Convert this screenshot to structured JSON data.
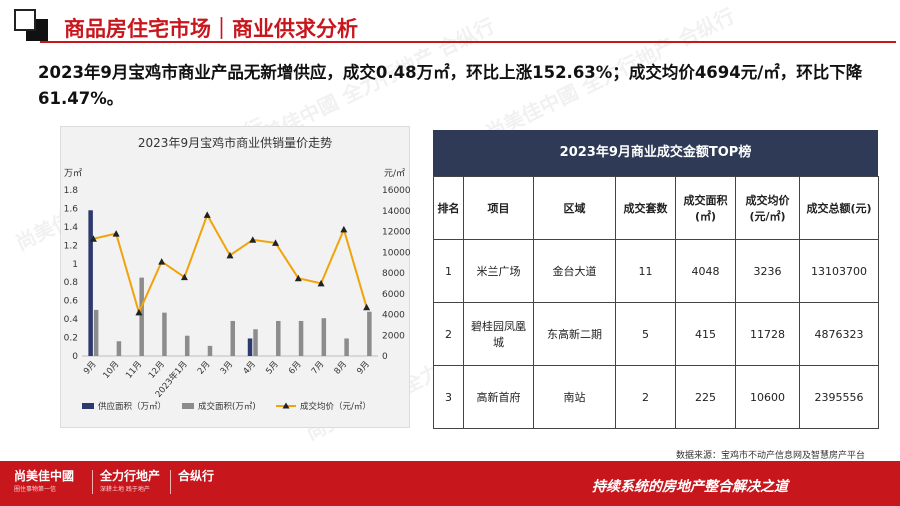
{
  "header": {
    "title": "商品房住宅市场｜商业供求分析"
  },
  "headline": "2023年9月宝鸡市商业产品无新增供应，成交0.48万㎡，环比上涨152.63%；成交均价4694元/㎡，环比下降61.47%。",
  "chart_data": {
    "type": "bar",
    "title": "2023年9月宝鸡市商业供销量价走势",
    "categories": [
      "9月",
      "10月",
      "11月",
      "12月",
      "2023年1月",
      "2月",
      "3月",
      "4月",
      "5月",
      "6月",
      "7月",
      "8月",
      "9月"
    ],
    "y_left_unit": "万㎡",
    "y_right_unit": "元/㎡",
    "y_left_range": [
      0,
      1.8
    ],
    "y_left_ticks": [
      "0",
      "0.2",
      "0.4",
      "0.6",
      "0.8",
      "1",
      "1.2",
      "1.4",
      "1.6",
      "1.8"
    ],
    "y_right_range": [
      0,
      16000
    ],
    "y_right_ticks": [
      "0",
      "2000",
      "4000",
      "6000",
      "8000",
      "10000",
      "12000",
      "14000",
      "16000"
    ],
    "series": [
      {
        "name": "供应面积（万㎡）",
        "kind": "bar",
        "axis": "left",
        "color": "#2e3a6e",
        "values": [
          1.58,
          0,
          0,
          0,
          0,
          0,
          0,
          0.19,
          0,
          0,
          0,
          0,
          0
        ]
      },
      {
        "name": "成交面积(万㎡)",
        "kind": "bar",
        "axis": "left",
        "color": "#8c8c8c",
        "values": [
          0.5,
          0.16,
          0.85,
          0.47,
          0.22,
          0.11,
          0.38,
          0.29,
          0.38,
          0.38,
          0.41,
          0.19,
          0.48
        ]
      },
      {
        "name": "成交均价（元/㎡）",
        "kind": "line",
        "axis": "right",
        "color": "#f0a30a",
        "values": [
          11300,
          11800,
          4200,
          9100,
          7600,
          13600,
          9700,
          11200,
          10900,
          7500,
          7000,
          12200,
          4694
        ]
      }
    ],
    "legend_position": "bottom",
    "grid": false
  },
  "table": {
    "title": "2023年9月商业成交金额TOP榜",
    "headers": [
      "排名",
      "项目",
      "区域",
      "成交套数",
      "成交面积(㎡)",
      "成交均价(元/㎡)",
      "成交总额(元)"
    ],
    "rows": [
      [
        "1",
        "米兰广场",
        "金台大道",
        "11",
        "4048",
        "3236",
        "13103700"
      ],
      [
        "2",
        "碧桂园凤凰城",
        "东高新二期",
        "5",
        "415",
        "11728",
        "4876323"
      ],
      [
        "3",
        "高新首府",
        "南站",
        "2",
        "225",
        "10600",
        "2395556"
      ]
    ]
  },
  "source": "数据来源：宝鸡市不动产信息网及智慧房产平台",
  "footer": {
    "brand1": "尚美佳中國",
    "brand1_sub": "圈住事物第一信",
    "brand2": "全力行地产",
    "brand2_sub": "深耕土地 践于地产",
    "brand3": "合纵行",
    "slogan": "持续系统的房地产整合解决之道"
  },
  "watermark": "尚美佳中國  全力行地产  合纵行"
}
